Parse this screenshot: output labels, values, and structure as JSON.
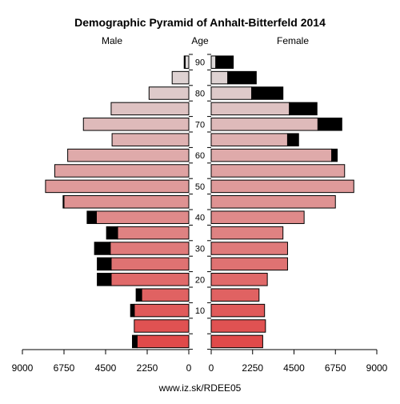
{
  "chart_data": {
    "type": "bar",
    "orientation": "horizontal",
    "title": "Demographic Pyramid of Anhalt-Bitterfeld 2014",
    "left_label": "Male",
    "center_label": "Age",
    "right_label": "Female",
    "footer": "www.iz.sk/RDEE05",
    "male_ticks": [
      "9000",
      "6750",
      "4500",
      "2250",
      "0"
    ],
    "female_ticks": [
      "0",
      "2250",
      "4500",
      "6750",
      "9000"
    ],
    "age_ticks": [
      "10",
      "20",
      "30",
      "40",
      "50",
      "60",
      "70",
      "80",
      "90"
    ],
    "xlim": [
      0,
      9000
    ],
    "age_groups": [
      "0-4",
      "5-9",
      "10-14",
      "15-19",
      "20-24",
      "25-29",
      "30-34",
      "35-39",
      "40-44",
      "45-49",
      "50-54",
      "55-59",
      "60-64",
      "65-69",
      "70-74",
      "75-79",
      "80-84",
      "85-89",
      "90+"
    ],
    "male_native": [
      2800,
      2950,
      2950,
      2550,
      4200,
      4200,
      4250,
      3850,
      5000,
      6750,
      7750,
      7250,
      6550,
      4150,
      5700,
      4200,
      2150,
      900,
      200
    ],
    "male_foreign": [
      250,
      0,
      200,
      300,
      750,
      750,
      850,
      600,
      500,
      50,
      0,
      0,
      0,
      0,
      0,
      0,
      0,
      0,
      50
    ],
    "female_native": [
      2800,
      2950,
      2900,
      2600,
      3050,
      4150,
      4150,
      3900,
      5050,
      6750,
      7750,
      7250,
      6550,
      4150,
      5800,
      4250,
      2200,
      900,
      250
    ],
    "female_foreign": [
      0,
      0,
      0,
      0,
      0,
      0,
      0,
      0,
      0,
      0,
      0,
      0,
      300,
      600,
      1300,
      1500,
      1700,
      1550,
      950
    ],
    "colors": {
      "young": "#e04a4a",
      "old": "#dedada",
      "foreign": "#000000",
      "axis": "#000000"
    }
  }
}
